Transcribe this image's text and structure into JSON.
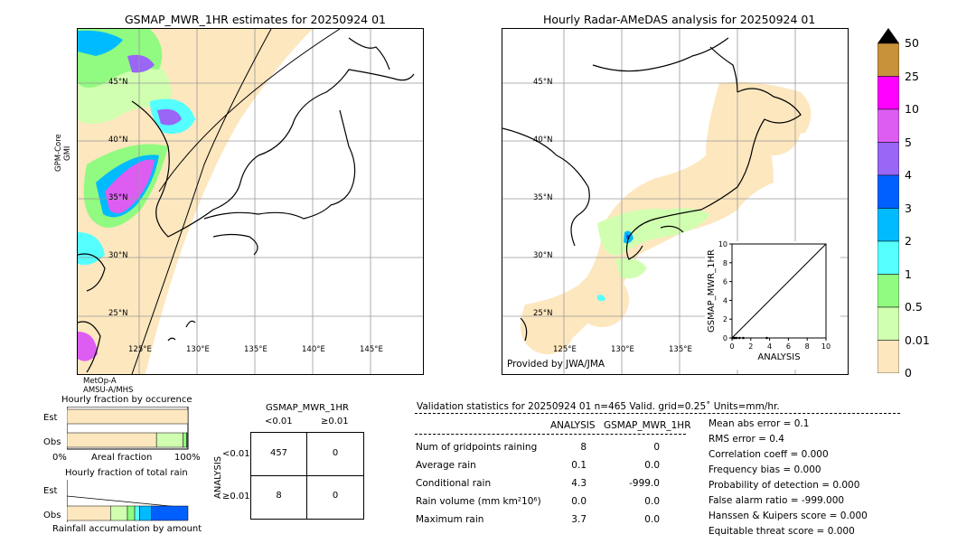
{
  "left_map": {
    "title": "GSMAP_MWR_1HR estimates for 20250924 01",
    "side_label_1": "GPM-Core",
    "side_label_2": "GMI",
    "bottom_label_1": "MetOp-A",
    "bottom_label_2": "AMSU-A/MHS",
    "lat_labels": [
      "45°N",
      "40°N",
      "35°N",
      "30°N",
      "25°N"
    ],
    "lon_labels": [
      "125°E",
      "130°E",
      "135°E",
      "140°E",
      "145°E"
    ]
  },
  "right_map": {
    "title": "Hourly Radar-AMeDAS analysis for 20250924 01",
    "provider": "Provided by JWA/JMA",
    "lat_labels": [
      "45°N",
      "40°N",
      "35°N",
      "30°N",
      "25°N"
    ],
    "lon_labels": [
      "125°E",
      "130°E",
      "135°E"
    ]
  },
  "colorbar": {
    "labels": [
      "50",
      "25",
      "10",
      "5",
      "4",
      "3",
      "2",
      "1",
      "0.5",
      "0.01",
      "0"
    ],
    "colors": [
      "#c8923a",
      "#ff00ff",
      "#dd5df3",
      "#9966f5",
      "#0060ff",
      "#00bbff",
      "#55ffff",
      "#91fa80",
      "#d0ffb0",
      "#fde7bf"
    ]
  },
  "chart_data": [
    {
      "type": "scatter",
      "title": "",
      "xlabel": "ANALYSIS",
      "ylabel": "GSMAP_MWR_1HR",
      "xlim": [
        0,
        10
      ],
      "ylim": [
        0,
        10
      ],
      "x_ticks": [
        "0",
        "2",
        "4",
        "6",
        "8",
        "10"
      ],
      "y_ticks": [
        "0",
        "2",
        "4",
        "6",
        "8",
        "10"
      ],
      "points": [
        [
          0.1,
          0
        ],
        [
          0.2,
          0
        ],
        [
          0.3,
          0
        ],
        [
          0.5,
          0
        ],
        [
          0.8,
          0
        ],
        [
          1.2,
          0
        ],
        [
          3.7,
          0
        ]
      ],
      "reference_line": [
        [
          0,
          0
        ],
        [
          10,
          10
        ]
      ]
    },
    {
      "type": "bar",
      "title": "Hourly fraction by occurence",
      "categories": [
        "Est",
        "Obs"
      ],
      "x_start": "0%",
      "x_end": "100%",
      "xlabel": "Areal fraction",
      "series": [
        {
          "values": [
            1.0,
            0.74
          ],
          "color": "#fde7bf"
        },
        {
          "values": [
            0.0,
            0.22
          ],
          "color": "#d0ffb0"
        },
        {
          "values": [
            0.0,
            0.03
          ],
          "color": "#91fa80"
        },
        {
          "values": [
            0.0,
            0.01
          ],
          "color": "#0060ff"
        }
      ]
    },
    {
      "type": "bar",
      "title": "Hourly fraction of total rain",
      "categories": [
        "Est",
        "Obs"
      ],
      "xlabel": "Rainfall accumulation by amount",
      "series": [
        {
          "values": [
            0.0,
            0.36
          ],
          "color": "#fde7bf"
        },
        {
          "values": [
            0.0,
            0.14
          ],
          "color": "#d0ffb0"
        },
        {
          "values": [
            0.0,
            0.06
          ],
          "color": "#91fa80"
        },
        {
          "values": [
            0.0,
            0.04
          ],
          "color": "#55ffff"
        },
        {
          "values": [
            0.0,
            0.1
          ],
          "color": "#00bbff"
        },
        {
          "values": [
            0.0,
            0.3
          ],
          "color": "#0060ff"
        }
      ]
    },
    {
      "type": "table",
      "title": "GSMAP_MWR_1HR",
      "col_headers": [
        "<0.01",
        "≥0.01"
      ],
      "row_headers": [
        "<0.01",
        "≥0.01"
      ],
      "side_label": "ANALYSIS",
      "cells": [
        [
          "457",
          "0"
        ],
        [
          "8",
          "0"
        ]
      ]
    }
  ],
  "validation": {
    "header": "Validation statistics for 20250924 01  n=465 Valid. grid=0.25˚ Units=mm/hr.",
    "col1": "ANALYSIS",
    "col2": "GSMAP_MWR_1HR",
    "rows": [
      {
        "label": "Num of gridpoints raining",
        "a": "8",
        "b": "0"
      },
      {
        "label": "Average rain",
        "a": "0.1",
        "b": "0.0"
      },
      {
        "label": "Conditional rain",
        "a": "4.3",
        "b": "-999.0"
      },
      {
        "label": "Rain volume (mm km²10⁶)",
        "a": "0.0",
        "b": "0.0"
      },
      {
        "label": "Maximum rain",
        "a": "3.7",
        "b": "0.0"
      }
    ],
    "scores": [
      "Mean abs error =    0.1",
      "RMS error =    0.4",
      "Correlation coeff =  0.000",
      "Frequency bias =  0.000",
      "Probability of detection =  0.000",
      "False alarm ratio = -999.000",
      "Hanssen & Kuipers score =  0.000",
      "Equitable threat score =  0.000"
    ]
  }
}
